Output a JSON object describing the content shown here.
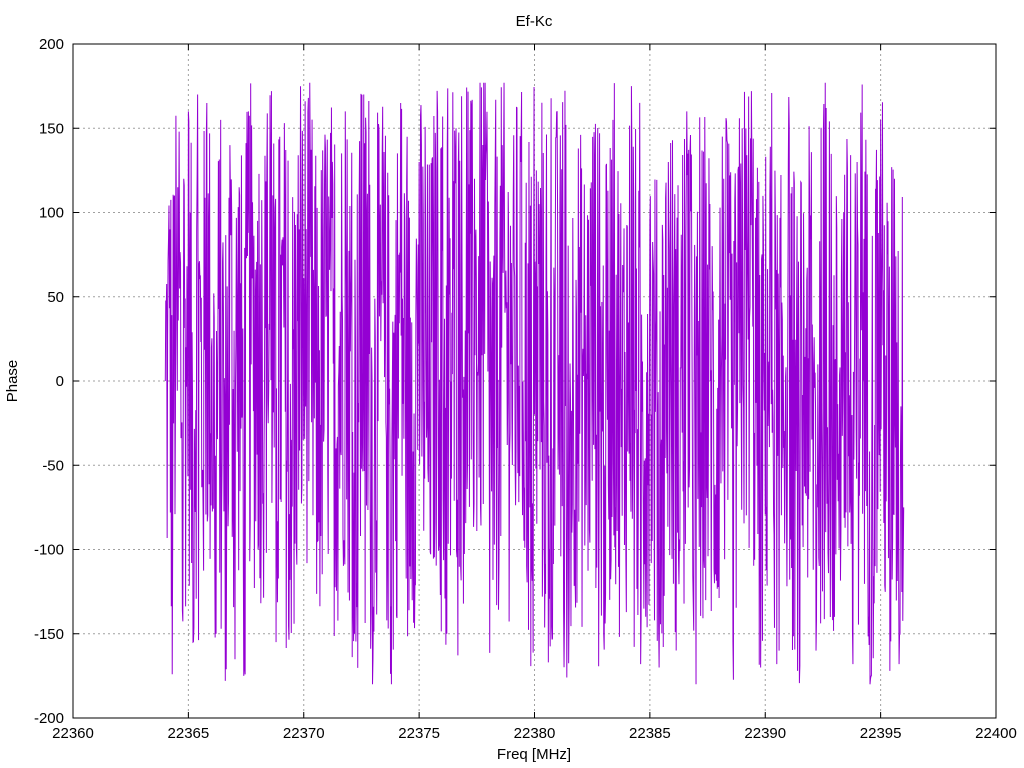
{
  "chart_data": {
    "type": "line",
    "title": "Ef-Kc",
    "xlabel": "Freq [MHz]",
    "ylabel": "Phase",
    "xlim": [
      22360,
      22400
    ],
    "ylim": [
      -200,
      200
    ],
    "xticks": [
      22360,
      22365,
      22370,
      22375,
      22380,
      22385,
      22390,
      22395,
      22400
    ],
    "yticks": [
      -200,
      -150,
      -100,
      -50,
      0,
      50,
      100,
      150,
      200
    ],
    "grid": true,
    "legend": "none",
    "series": [
      {
        "color": "#9400d3",
        "x_range": [
          22364,
          22396
        ],
        "approx_extremes": {
          "max": 177,
          "min": -180
        },
        "samples": [
          [
            22364.0,
            0
          ],
          [
            22364.1,
            25
          ],
          [
            22364.2,
            90
          ],
          [
            22364.3,
            -174
          ],
          [
            22364.4,
            110
          ],
          [
            22364.5,
            30
          ],
          [
            22364.6,
            148
          ],
          [
            22364.7,
            -30
          ],
          [
            22364.8,
            120
          ],
          [
            22364.9,
            20
          ],
          [
            22365.0,
            160
          ],
          [
            22365.2,
            -155
          ],
          [
            22365.4,
            170
          ],
          [
            22365.6,
            -60
          ],
          [
            22365.8,
            165
          ],
          [
            22366.0,
            20
          ],
          [
            22366.2,
            -150
          ],
          [
            22366.4,
            155
          ],
          [
            22366.6,
            -178
          ],
          [
            22366.8,
            140
          ],
          [
            22367.0,
            -50
          ],
          [
            22367.2,
            115
          ],
          [
            22367.4,
            -175
          ],
          [
            22367.6,
            160
          ],
          [
            22367.8,
            70
          ],
          [
            22368.0,
            95
          ],
          [
            22368.2,
            40
          ],
          [
            22368.4,
            125
          ],
          [
            22368.6,
            172
          ],
          [
            22368.8,
            -155
          ],
          [
            22369.0,
            75
          ],
          [
            22369.4,
            -118
          ],
          [
            22369.8,
            90
          ],
          [
            22370.2,
            168
          ],
          [
            22370.6,
            -95
          ],
          [
            22371.0,
            120
          ],
          [
            22371.4,
            -40
          ],
          [
            22371.8,
            160
          ],
          [
            22372.2,
            -150
          ],
          [
            22372.6,
            170
          ],
          [
            22373.0,
            -165
          ],
          [
            22373.4,
            135
          ],
          [
            22373.8,
            -180
          ],
          [
            22374.2,
            165
          ],
          [
            22374.6,
            -110
          ],
          [
            22375.0,
            130
          ],
          [
            22375.4,
            -60
          ],
          [
            22375.8,
            160
          ],
          [
            22376.2,
            -150
          ],
          [
            22376.6,
            150
          ],
          [
            22377.0,
            30
          ],
          [
            22377.4,
            120
          ],
          [
            22377.8,
            177
          ],
          [
            22378.2,
            -118
          ],
          [
            22378.6,
            140
          ],
          [
            22379.0,
            70
          ],
          [
            22379.4,
            130
          ],
          [
            22379.8,
            -75
          ],
          [
            22380.2,
            105
          ],
          [
            22380.6,
            -167
          ],
          [
            22381.0,
            100
          ],
          [
            22381.4,
            -176
          ],
          [
            22381.8,
            60
          ],
          [
            22382.2,
            -40
          ],
          [
            22382.6,
            130
          ],
          [
            22383.0,
            -150
          ],
          [
            22383.4,
            155
          ],
          [
            22383.8,
            -80
          ],
          [
            22384.2,
            175
          ],
          [
            22384.6,
            -168
          ],
          [
            22385.0,
            95
          ],
          [
            22385.4,
            -170
          ],
          [
            22385.8,
            130
          ],
          [
            22386.2,
            -90
          ],
          [
            22386.6,
            160
          ],
          [
            22387.0,
            -180
          ],
          [
            22387.4,
            80
          ],
          [
            22387.8,
            -120
          ],
          [
            22388.2,
            120
          ],
          [
            22388.6,
            -155
          ],
          [
            22389.0,
            150
          ],
          [
            22389.4,
            172
          ],
          [
            22389.8,
            -170
          ],
          [
            22390.2,
            110
          ],
          [
            22390.6,
            -160
          ],
          [
            22391.0,
            130
          ],
          [
            22391.4,
            -172
          ],
          [
            22391.8,
            60
          ],
          [
            22392.2,
            -160
          ],
          [
            22392.6,
            177
          ],
          [
            22393.0,
            -140
          ],
          [
            22393.4,
            100
          ],
          [
            22393.8,
            -168
          ],
          [
            22394.2,
            176
          ],
          [
            22394.6,
            -175
          ],
          [
            22395.0,
            155
          ],
          [
            22395.4,
            -172
          ],
          [
            22395.6,
            120
          ],
          [
            22395.8,
            -168
          ],
          [
            22396.0,
            -75
          ]
        ]
      }
    ]
  },
  "colors": {
    "series": "#9400d3",
    "grid": "#a0a0a0",
    "axis": "#000000",
    "background": "#ffffff"
  }
}
